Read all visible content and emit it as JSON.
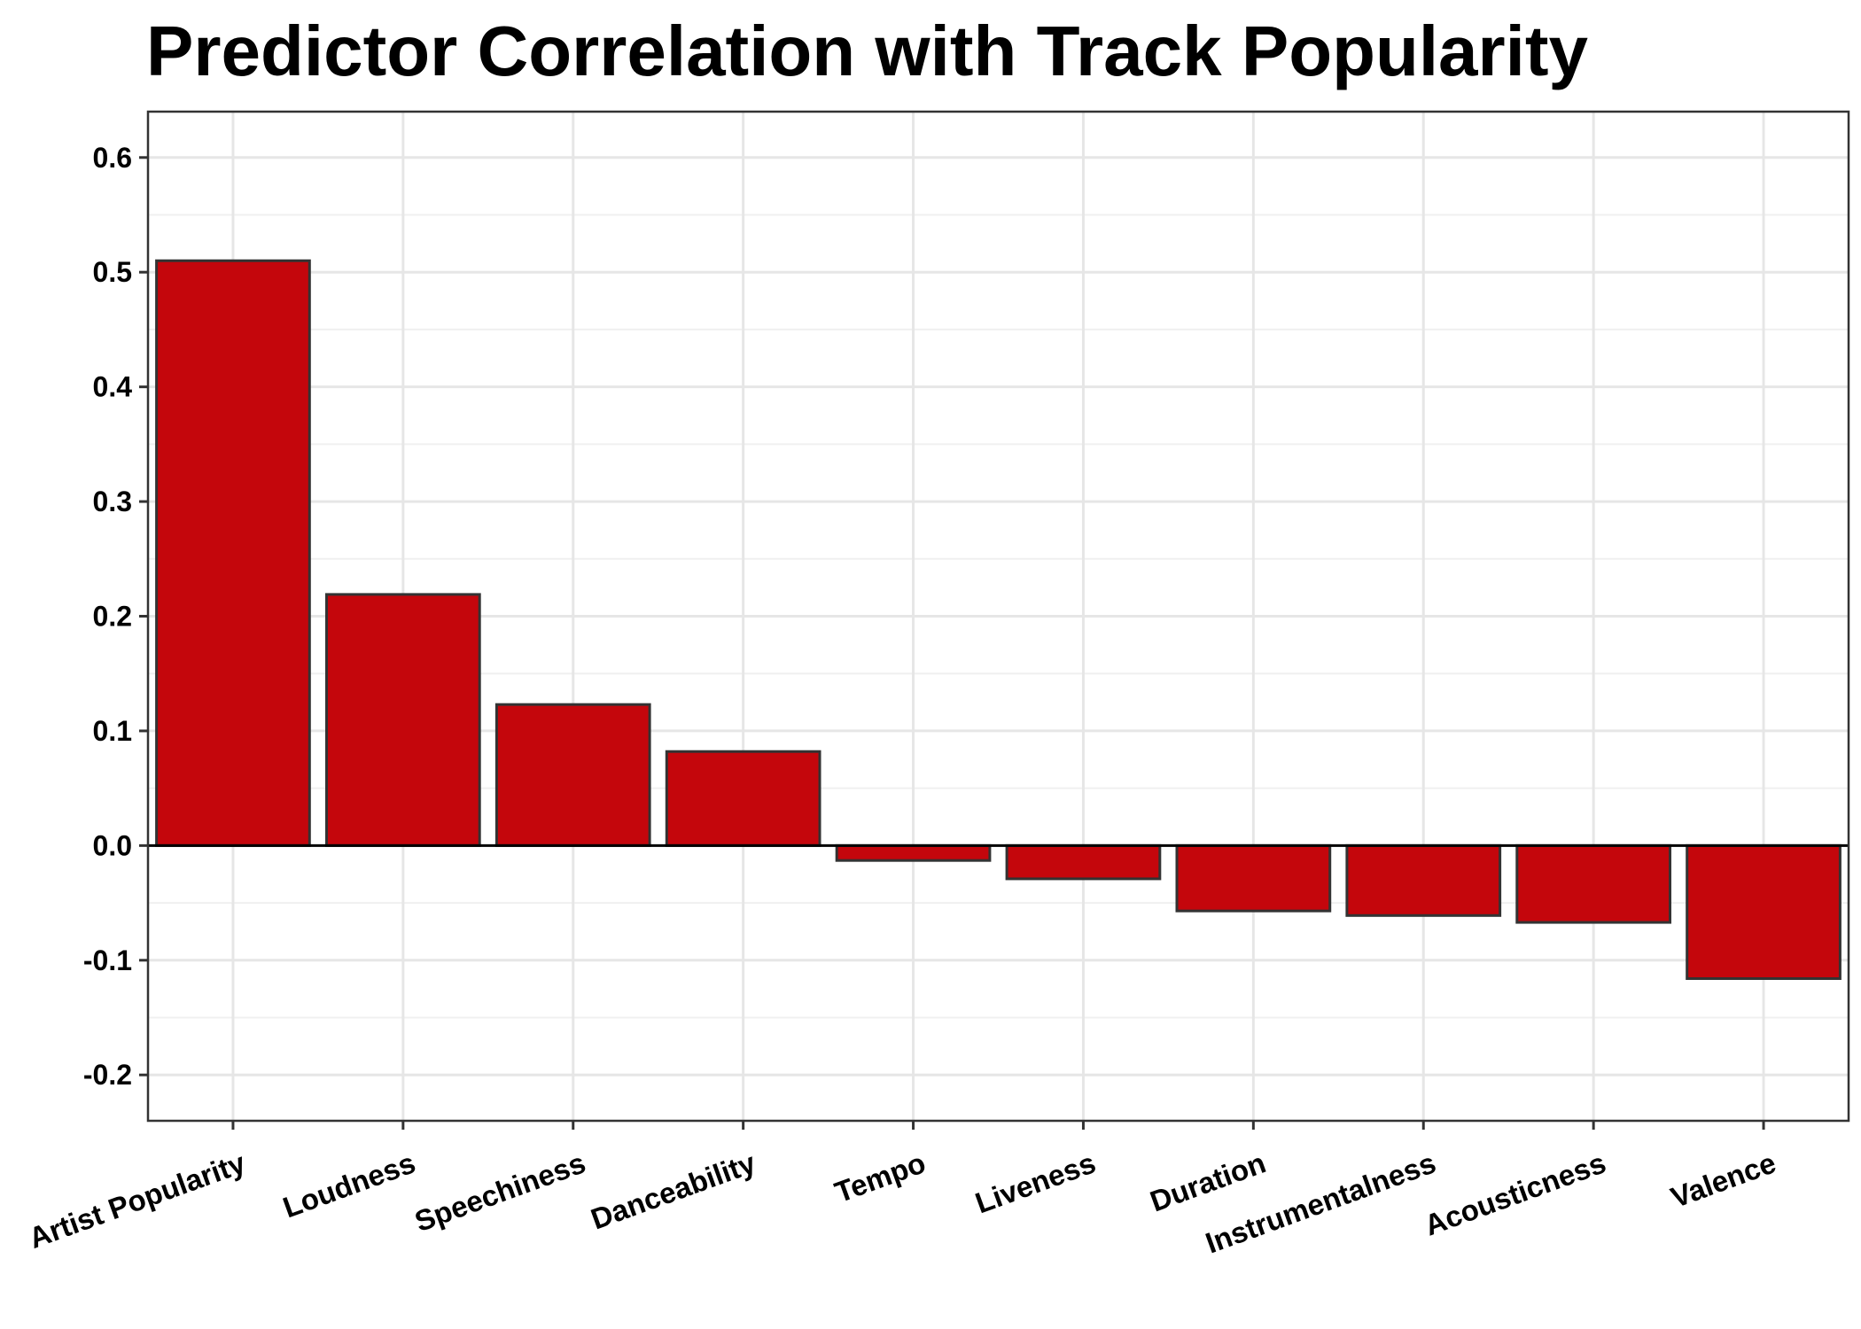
{
  "chart_data": {
    "type": "bar",
    "title": "Predictor Correlation with Track Popularity",
    "xlabel": "",
    "ylabel": "",
    "categories": [
      "Artist Popularity",
      "Loudness",
      "Speechiness",
      "Danceability",
      "Tempo",
      "Liveness",
      "Duration",
      "Instrumentalness",
      "Acousticness",
      "Valence"
    ],
    "values": [
      0.51,
      0.219,
      0.123,
      0.082,
      -0.013,
      -0.029,
      -0.057,
      -0.061,
      -0.067,
      -0.116
    ],
    "ylim": [
      -0.24,
      0.64
    ],
    "yticks": [
      -0.2,
      -0.1,
      0.0,
      0.1,
      0.2,
      0.3,
      0.4,
      0.5,
      0.6
    ],
    "ytick_labels": [
      "-0.2",
      "-0.1",
      "0.0",
      "0.1",
      "0.2",
      "0.3",
      "0.4",
      "0.5",
      "0.6"
    ],
    "grid": true,
    "bar_color": "#c4060c",
    "bar_outline_color": "#333333"
  }
}
